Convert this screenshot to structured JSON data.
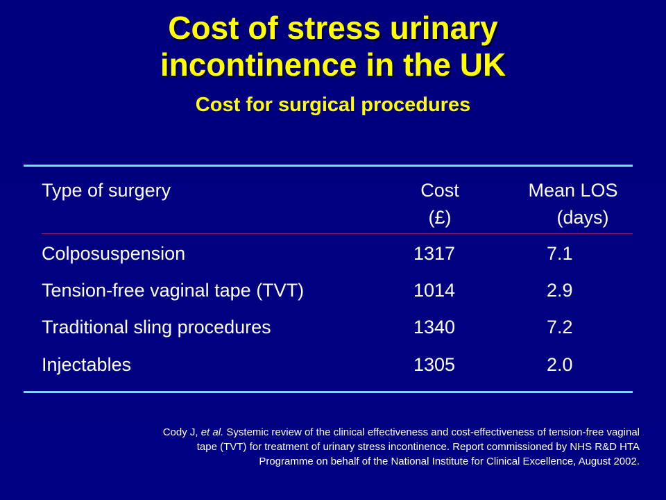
{
  "title": {
    "line1": "Cost of stress urinary",
    "line2": "incontinence in the UK"
  },
  "subtitle": "Cost for surgical procedures",
  "table": {
    "headers": {
      "type": "Type of surgery",
      "cost_line1": "Cost",
      "cost_line2": "(£)",
      "los_line1": "Mean LOS",
      "los_line2": "(days)"
    },
    "rows": [
      {
        "type": "Colposuspension",
        "cost": "1317",
        "los": "7.1"
      },
      {
        "type": "Tension-free vaginal tape (TVT)",
        "cost": "1014",
        "los": "2.9"
      },
      {
        "type": "Traditional sling procedures",
        "cost": "1340",
        "los": "7.2"
      },
      {
        "type": "Injectables",
        "cost": "1305",
        "los": "2.0"
      }
    ]
  },
  "citation": {
    "authors": "Cody J, ",
    "etal": "et al.",
    "rest_line1": " Systemic review of the clinical effectiveness and cost-effectiveness of tension-free vaginal",
    "line2": "tape (TVT) for treatment of urinary stress incontinence. Report commissioned by NHS R&D HTA",
    "line3": "Programme on behalf of the National Institute for Clinical Excellence, August 2002."
  },
  "colors": {
    "background": "#000080",
    "title": "#ffff00",
    "rule": "#66e8f2",
    "header_divider": "#a01868",
    "text": "#ffffff"
  }
}
